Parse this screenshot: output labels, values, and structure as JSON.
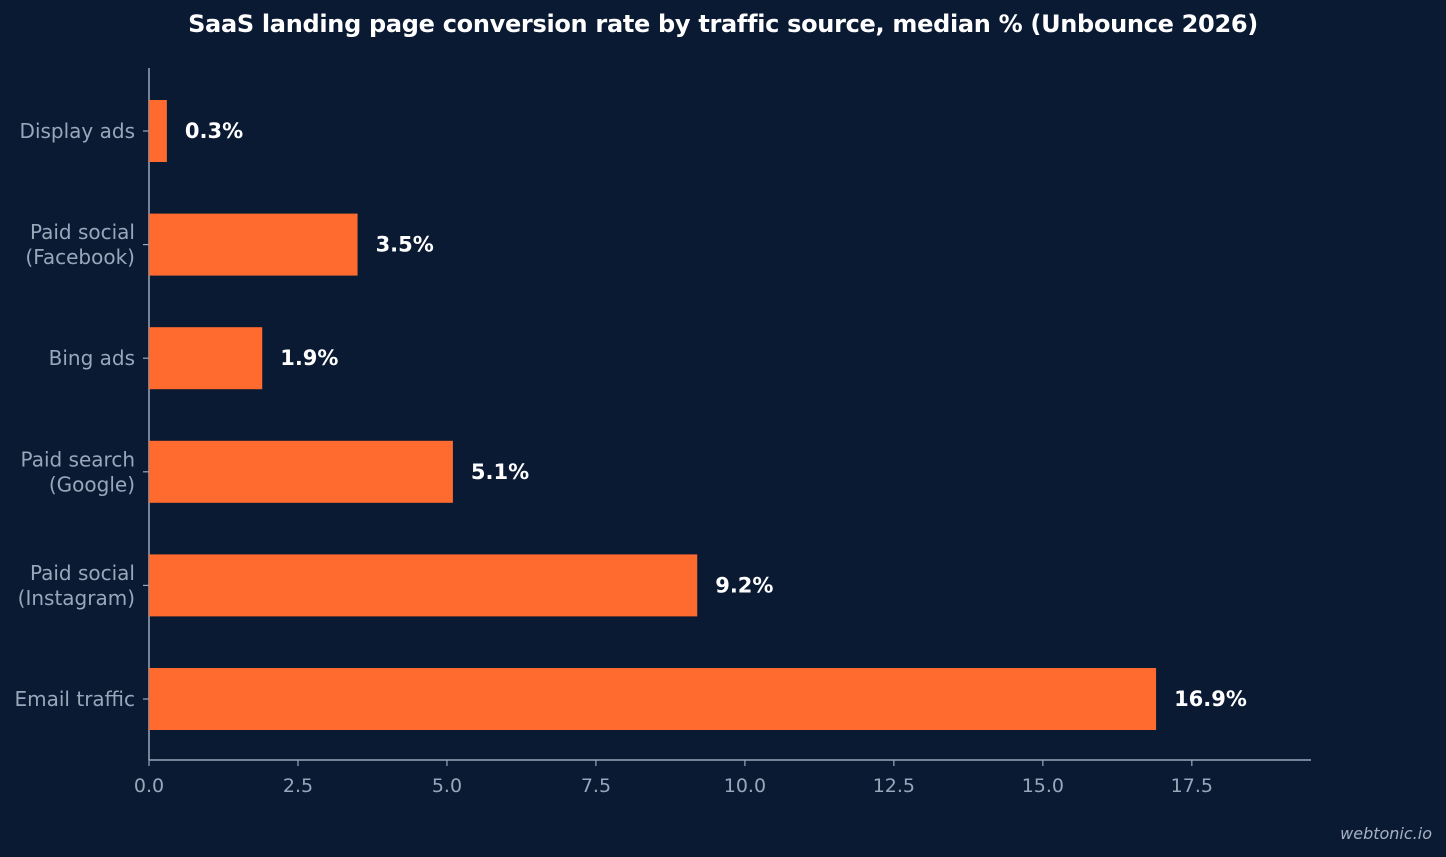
{
  "title": "SaaS landing page conversion rate by traffic source, median % (Unbounce 2026)",
  "watermark": "webtonic.io",
  "colors": {
    "background": "#0b1a33",
    "bar": "#ff6b2e",
    "axis": "#9aa7ba",
    "tick_label": "#9aa7ba",
    "category_label": "#9aa7ba",
    "value_label": "#ffffff",
    "title": "#ffffff"
  },
  "chart_data": {
    "type": "bar",
    "orientation": "horizontal",
    "title": "SaaS landing page conversion rate by traffic source, median % (Unbounce 2026)",
    "categories": [
      [
        "Display ads"
      ],
      [
        "Paid social",
        "(Facebook)"
      ],
      [
        "Bing ads"
      ],
      [
        "Paid search",
        "(Google)"
      ],
      [
        "Paid social",
        "(Instagram)"
      ],
      [
        "Email traffic"
      ]
    ],
    "values": [
      0.3,
      3.5,
      1.9,
      5.1,
      9.2,
      16.9
    ],
    "value_labels": [
      "0.3%",
      "3.5%",
      "1.9%",
      "5.1%",
      "9.2%",
      "16.9%"
    ],
    "xlim": [
      0,
      19.5
    ],
    "xticks": [
      0,
      2.5,
      5,
      7.5,
      10,
      12.5,
      15,
      17.5
    ],
    "xtick_labels": [
      "0.0",
      "2.5",
      "5.0",
      "7.5",
      "10.0",
      "12.5",
      "15.0",
      "17.5"
    ],
    "xlabel": "",
    "ylabel": "",
    "grid": false,
    "legend": "none"
  }
}
